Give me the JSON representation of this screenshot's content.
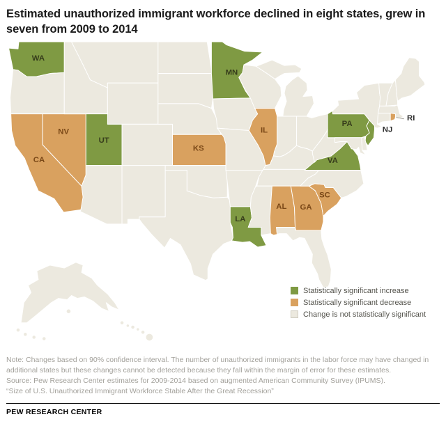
{
  "title": "Estimated unauthorized immigrant workforce declined in eight states, grew in seven from 2009 to 2014",
  "chart_data": {
    "type": "choropleth_map",
    "region": "United States, 50 states",
    "period": "2009 to 2014",
    "legend_position": "bottom-right",
    "classification": {
      "increase": {
        "label": "Statistically significant increase",
        "color": "#7f9a43",
        "states": [
          "WA",
          "MN",
          "UT",
          "LA",
          "PA",
          "NJ",
          "VA"
        ]
      },
      "decrease": {
        "label": "Statistically significant decrease",
        "color": "#d9a15f",
        "states": [
          "CA",
          "NV",
          "KS",
          "IL",
          "RI",
          "AL",
          "GA",
          "SC"
        ]
      },
      "not_significant": {
        "label": "Change is not statistically significant",
        "color": "#ece9df",
        "states": [
          "OR",
          "ID",
          "MT",
          "WY",
          "CO",
          "AZ",
          "NM",
          "ND",
          "SD",
          "NE",
          "OK",
          "TX",
          "IA",
          "MO",
          "AR",
          "WI",
          "MI",
          "IN",
          "OH",
          "KY",
          "TN",
          "MS",
          "NC",
          "WV",
          "MD",
          "DE",
          "CT",
          "MA",
          "VT",
          "NH",
          "NY",
          "ME",
          "FL",
          "AK",
          "HI"
        ]
      }
    },
    "labeled_states": [
      "WA",
      "MN",
      "NV",
      "CA",
      "UT",
      "KS",
      "IL",
      "LA",
      "AL",
      "GA",
      "SC",
      "VA",
      "PA",
      "NJ",
      "RI"
    ],
    "counts": {
      "increase_states": 7,
      "decrease_states": 8
    }
  },
  "notes": {
    "note": "Note: Changes based on 90% confidence interval. The number of unauthorized immigrants in the labor force may have changed in additional states but these changes cannot be detected because they fall within the margin of error for these estimates.",
    "source": "Source: Pew Research Center estimates for 2009-2014 based on augmented American Community Survey (IPUMS).",
    "report": "“Size of U.S. Unauthorized Immigrant Workforce Stable After the Great Recession”"
  },
  "footer": {
    "brand": "PEW RESEARCH CENTER"
  }
}
